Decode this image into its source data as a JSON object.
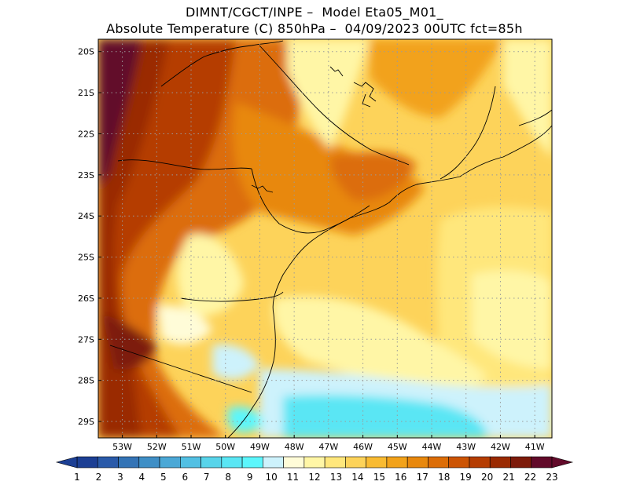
{
  "header": {
    "line1": "DIMNT/CGCT/INPE –  Model Eta05_M01_",
    "line2": "Absolute Temperature (C) 850hPa –  04/09/2023 00UTC fct=85h"
  },
  "map": {
    "lat_labels": [
      "20S",
      "21S",
      "22S",
      "23S",
      "24S",
      "25S",
      "26S",
      "27S",
      "28S",
      "29S"
    ],
    "lon_labels": [
      "53W",
      "52W",
      "51W",
      "50W",
      "49W",
      "48W",
      "47W",
      "46W",
      "45W",
      "44W",
      "43W",
      "42W",
      "41W"
    ],
    "lon_range": [
      -53.7,
      -40.5
    ],
    "lat_range": [
      -29.4,
      -19.7
    ],
    "grid": "dotted"
  },
  "colorbar": {
    "labels": [
      "1",
      "2",
      "3",
      "4",
      "5",
      "6",
      "7",
      "8",
      "9",
      "10",
      "11",
      "12",
      "13",
      "14",
      "15",
      "16",
      "17",
      "18",
      "19",
      "20",
      "21",
      "22",
      "23"
    ],
    "colors": [
      "#1c3f94",
      "#2a5aa9",
      "#3474b6",
      "#3f8fc6",
      "#4ba8d6",
      "#52c0e3",
      "#58d4ea",
      "#5ae6f4",
      "#5cf6fc",
      "#cdf2fc",
      "#fffcd8",
      "#fff6a6",
      "#ffe77c",
      "#fdd35a",
      "#f9bb32",
      "#f2a21a",
      "#e8880d",
      "#dc6d07",
      "#cc5404",
      "#b53d02",
      "#9a2a02",
      "#7d1b0a",
      "#620a2a"
    ]
  }
}
